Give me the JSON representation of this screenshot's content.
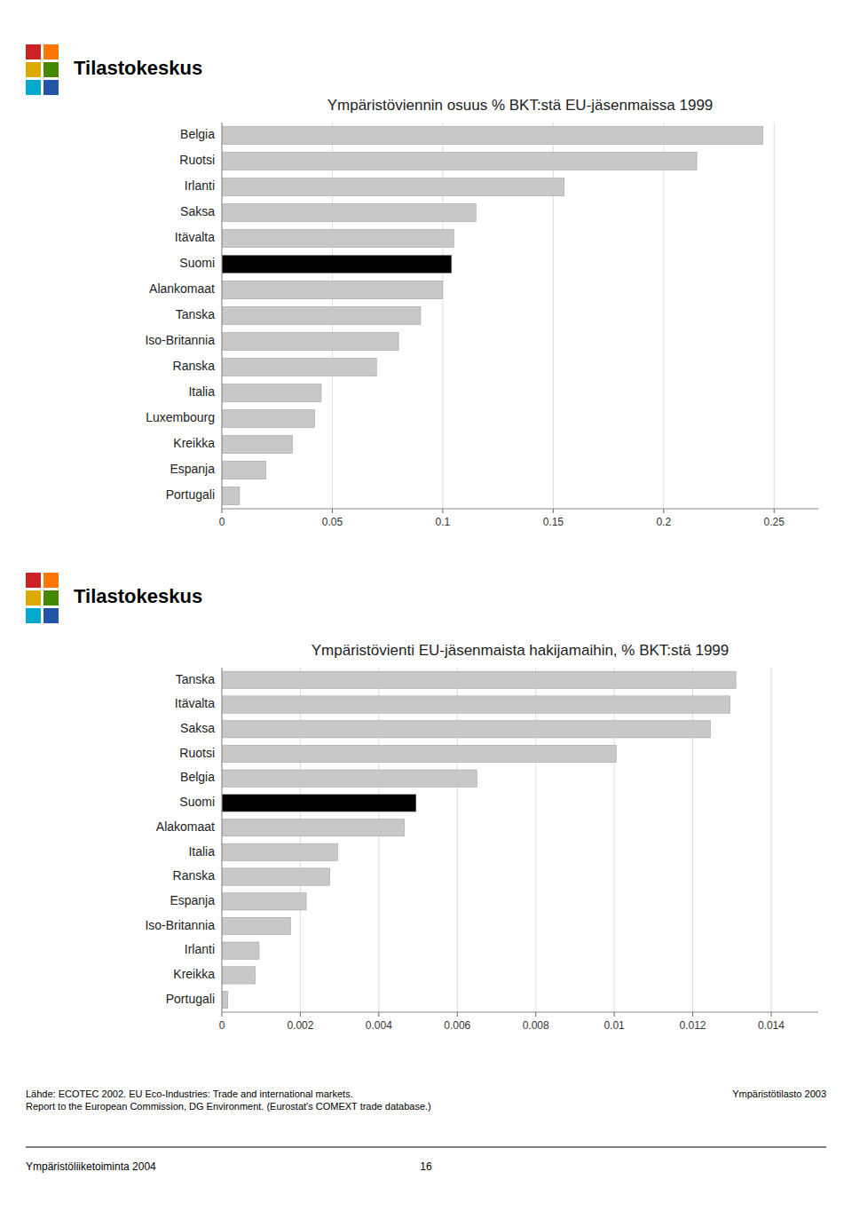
{
  "chart_data": [
    {
      "type": "bar",
      "orientation": "horizontal",
      "title": "Ympäristöviennin osuus % BKT:stä EU-jäsenmaissa 1999",
      "categories": [
        "Belgia",
        "Ruotsi",
        "Irlanti",
        "Saksa",
        "Itävalta",
        "Suomi",
        "Alankomaat",
        "Tanska",
        "Iso-Britannia",
        "Ranska",
        "Italia",
        "Luxembourg",
        "Kreikka",
        "Espanja",
        "Portugali"
      ],
      "values": [
        0.245,
        0.215,
        0.155,
        0.115,
        0.105,
        0.104,
        0.1,
        0.09,
        0.08,
        0.07,
        0.045,
        0.042,
        0.032,
        0.02,
        0.008
      ],
      "colors": [
        "#c8c8c8",
        "#c8c8c8",
        "#c8c8c8",
        "#c8c8c8",
        "#c8c8c8",
        "#000000",
        "#c8c8c8",
        "#c8c8c8",
        "#c8c8c8",
        "#c8c8c8",
        "#c8c8c8",
        "#c8c8c8",
        "#c8c8c8",
        "#c8c8c8",
        "#c8c8c8"
      ],
      "xlim": [
        0,
        0.27
      ],
      "xticks": [
        0,
        0.05,
        0.1,
        0.15,
        0.2,
        0.25
      ],
      "grid": true
    },
    {
      "type": "bar",
      "orientation": "horizontal",
      "title": "Ympäristövienti EU-jäsenmaista hakijamaihin, % BKT:stä 1999",
      "categories": [
        "Tanska",
        "Itävalta",
        "Saksa",
        "Ruotsi",
        "Belgia",
        "Suomi",
        "Alakomaat",
        "Italia",
        "Ranska",
        "Espanja",
        "Iso-Britannia",
        "Irlanti",
        "Kreikka",
        "Portugali"
      ],
      "values": [
        0.0131,
        0.01295,
        0.01245,
        0.01005,
        0.0065,
        0.00495,
        0.00465,
        0.00295,
        0.00275,
        0.00215,
        0.00175,
        0.00095,
        0.00085,
        0.00015
      ],
      "colors": [
        "#c8c8c8",
        "#c8c8c8",
        "#c8c8c8",
        "#c8c8c8",
        "#c8c8c8",
        "#000000",
        "#c8c8c8",
        "#c8c8c8",
        "#c8c8c8",
        "#c8c8c8",
        "#c8c8c8",
        "#c8c8c8",
        "#c8c8c8",
        "#c8c8c8"
      ],
      "xlim": [
        0,
        0.0152
      ],
      "xticks": [
        0,
        0.002,
        0.004,
        0.006,
        0.008,
        0.01,
        0.012,
        0.014
      ],
      "grid": true
    }
  ],
  "logo_text": "Tilastokeskus",
  "logo_colors": [
    "#cc2222",
    "#ff7700",
    "#ddaa00",
    "#448800",
    "#00aacc",
    "#2255aa"
  ],
  "source_text": "Lähde: ECOTEC 2002. EU Eco-Industries: Trade and international markets.\nReport to the European Commission, DG Environment. (Eurostat's COMEXT trade database.)",
  "right_source_text": "Ympäristötilasto 2003",
  "footer_left": "Ympäristöliiketoiminta 2004",
  "footer_page": "16"
}
